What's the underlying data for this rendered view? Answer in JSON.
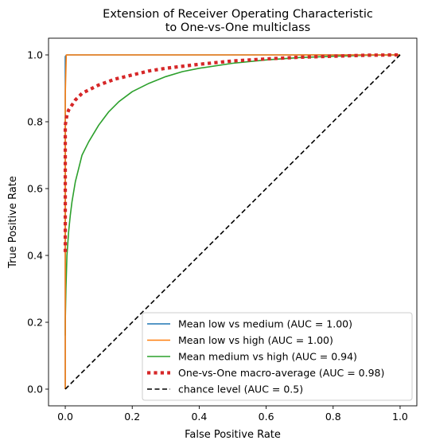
{
  "chart_data": {
    "type": "line",
    "title": [
      "Extension of Receiver Operating Characteristic",
      "to One-vs-One multiclass"
    ],
    "xlabel": "False Positive Rate",
    "ylabel": "True Positive Rate",
    "xlim": [
      -0.05,
      1.05
    ],
    "ylim": [
      -0.05,
      1.05
    ],
    "xticks": [
      "0.0",
      "0.2",
      "0.4",
      "0.6",
      "0.8",
      "1.0"
    ],
    "yticks": [
      "0.0",
      "0.2",
      "0.4",
      "0.6",
      "0.8",
      "1.0"
    ],
    "grid": false,
    "legend_position": "lower right",
    "series": [
      {
        "name": "Mean low vs medium (AUC = 1.00)",
        "color": "#1f77b4",
        "style": "solid",
        "x": [
          0.0,
          0.0,
          0.0,
          0.002,
          0.005,
          0.01,
          1.0
        ],
        "y": [
          0.0,
          0.86,
          0.995,
          0.998,
          1.0,
          1.0,
          1.0
        ]
      },
      {
        "name": "Mean low vs high (AUC = 1.00)",
        "color": "#ff7f0e",
        "style": "solid",
        "x": [
          0.0,
          0.0,
          0.0,
          0.0,
          0.003,
          0.01,
          1.0
        ],
        "y": [
          0.0,
          0.2,
          0.5,
          0.88,
          1.0,
          1.0,
          1.0
        ]
      },
      {
        "name": "Mean medium vs high (AUC = 0.94)",
        "color": "#2ca02c",
        "style": "solid",
        "x": [
          0.0,
          0.0,
          0.002,
          0.005,
          0.01,
          0.015,
          0.02,
          0.03,
          0.04,
          0.05,
          0.07,
          0.1,
          0.13,
          0.16,
          0.2,
          0.25,
          0.3,
          0.35,
          0.4,
          0.5,
          0.6,
          0.7,
          0.8,
          0.9,
          1.0
        ],
        "y": [
          0.16,
          0.2,
          0.3,
          0.4,
          0.47,
          0.52,
          0.56,
          0.62,
          0.66,
          0.7,
          0.74,
          0.79,
          0.83,
          0.86,
          0.89,
          0.915,
          0.935,
          0.95,
          0.96,
          0.975,
          0.985,
          0.992,
          0.996,
          0.999,
          1.0
        ]
      },
      {
        "name": "One-vs-One macro-average (AUC = 0.98)",
        "color": "#d62728",
        "style": "dotted",
        "x": [
          0.0,
          0.0,
          0.0,
          0.0,
          0.005,
          0.01,
          0.02,
          0.03,
          0.05,
          0.08,
          0.1,
          0.15,
          0.2,
          0.25,
          0.3,
          0.4,
          0.5,
          0.6,
          0.7,
          0.8,
          0.9,
          1.0
        ],
        "y": [
          0.41,
          0.6,
          0.77,
          0.79,
          0.82,
          0.835,
          0.85,
          0.865,
          0.885,
          0.9,
          0.91,
          0.928,
          0.94,
          0.952,
          0.96,
          0.972,
          0.982,
          0.988,
          0.993,
          0.996,
          0.999,
          1.0
        ]
      },
      {
        "name": "chance level (AUC = 0.5)",
        "color": "#000000",
        "style": "dashed",
        "x": [
          0.0,
          1.0
        ],
        "y": [
          0.0,
          1.0
        ]
      }
    ]
  }
}
